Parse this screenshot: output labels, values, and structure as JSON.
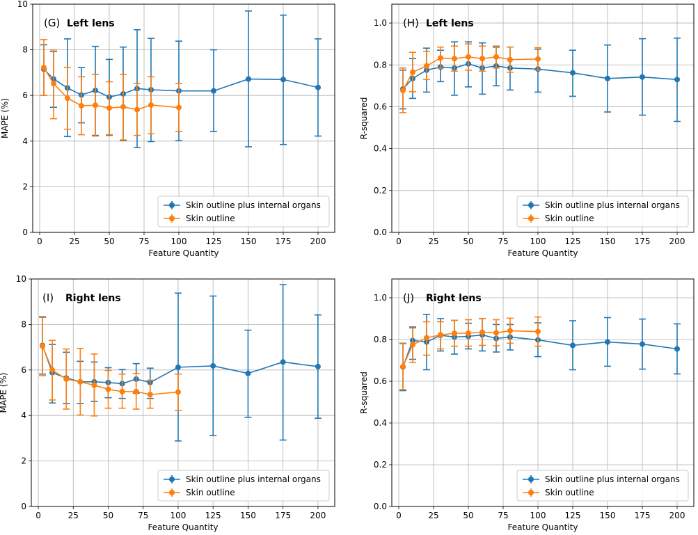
{
  "colors": {
    "blue": "#1f77b4",
    "orange": "#ff7f0e",
    "grid": "#b0b0b0"
  },
  "chart_data": [
    {
      "type": "line",
      "panel": "(G)",
      "title": "Left lens",
      "xlabel": "Feature Quantity",
      "ylabel": "MAPE (%)",
      "xlim": [
        -5,
        212
      ],
      "ylim": [
        0,
        10
      ],
      "xticks": [
        0,
        25,
        50,
        75,
        100,
        125,
        150,
        175,
        200
      ],
      "yticks": [
        0,
        2,
        4,
        6,
        8,
        10
      ],
      "ytick_labels": [
        "0",
        "2",
        "4",
        "6",
        "8",
        "10"
      ],
      "grid": true,
      "legend_position": "lower-right",
      "series": [
        {
          "name": "Skin outline plus internal organs",
          "color": "#1f77b4",
          "x": [
            3,
            10,
            20,
            30,
            40,
            50,
            60,
            70,
            80,
            100,
            125,
            150,
            175,
            200
          ],
          "y": [
            7.15,
            6.72,
            6.33,
            6.02,
            6.22,
            5.93,
            6.07,
            6.3,
            6.25,
            6.2,
            6.2,
            6.72,
            6.7,
            6.35
          ],
          "err_low": [
            6.0,
            5.48,
            4.2,
            4.8,
            4.25,
            4.25,
            4.02,
            3.72,
            3.98,
            4.02,
            4.42,
            3.75,
            3.85,
            4.22
          ],
          "err_high": [
            8.22,
            7.92,
            8.48,
            7.22,
            8.15,
            7.58,
            8.12,
            8.88,
            8.5,
            8.38,
            8.0,
            9.7,
            9.52,
            8.48
          ]
        },
        {
          "name": "Skin outline",
          "color": "#ff7f0e",
          "x": [
            3,
            10,
            20,
            30,
            40,
            50,
            60,
            70,
            80,
            100
          ],
          "y": [
            7.22,
            6.52,
            5.88,
            5.55,
            5.57,
            5.45,
            5.5,
            5.38,
            5.58,
            5.47
          ],
          "err_low": [
            6.0,
            4.98,
            4.52,
            4.28,
            4.22,
            4.28,
            4.05,
            4.25,
            4.32,
            4.42
          ],
          "err_high": [
            8.45,
            8.0,
            7.22,
            6.82,
            6.92,
            6.6,
            6.92,
            6.52,
            6.82,
            6.52
          ]
        }
      ]
    },
    {
      "type": "line",
      "panel": "(H)",
      "title": "Left lens",
      "xlabel": "Feature Quantity",
      "ylabel": "R-squared",
      "xlim": [
        -5,
        212
      ],
      "ylim": [
        0,
        1.09
      ],
      "xticks": [
        0,
        25,
        50,
        75,
        100,
        125,
        150,
        175,
        200
      ],
      "yticks": [
        0,
        0.2,
        0.4,
        0.6,
        0.8,
        1.0
      ],
      "ytick_labels": [
        "0.0",
        "0.2",
        "0.4",
        "0.6",
        "0.8",
        "1.0"
      ],
      "grid": true,
      "legend_position": "lower-right",
      "series": [
        {
          "name": "Skin outline plus internal organs",
          "color": "#1f77b4",
          "x": [
            3,
            10,
            20,
            30,
            40,
            50,
            60,
            70,
            80,
            100,
            125,
            150,
            175,
            200
          ],
          "y": [
            0.685,
            0.735,
            0.775,
            0.79,
            0.785,
            0.805,
            0.785,
            0.795,
            0.785,
            0.78,
            0.762,
            0.735,
            0.742,
            0.73
          ],
          "err_low": [
            0.59,
            0.64,
            0.67,
            0.72,
            0.655,
            0.695,
            0.66,
            0.7,
            0.68,
            0.67,
            0.65,
            0.575,
            0.56,
            0.53
          ],
          "err_high": [
            0.775,
            0.83,
            0.88,
            0.87,
            0.91,
            0.91,
            0.905,
            0.885,
            0.885,
            0.875,
            0.87,
            0.895,
            0.925,
            0.928
          ]
        },
        {
          "name": "Skin outline",
          "color": "#ff7f0e",
          "x": [
            3,
            10,
            20,
            30,
            40,
            50,
            60,
            70,
            80,
            100
          ],
          "y": [
            0.678,
            0.765,
            0.795,
            0.833,
            0.83,
            0.838,
            0.83,
            0.838,
            0.825,
            0.828
          ],
          "err_low": [
            0.572,
            0.672,
            0.73,
            0.785,
            0.77,
            0.775,
            0.77,
            0.785,
            0.765,
            0.775
          ],
          "err_high": [
            0.785,
            0.86,
            0.865,
            0.885,
            0.89,
            0.9,
            0.89,
            0.89,
            0.885,
            0.882
          ]
        }
      ]
    },
    {
      "type": "line",
      "panel": "(I)",
      "title": "Right lens",
      "xlabel": "Feature Quantity",
      "ylabel": "MAPE (%)",
      "xlim": [
        -5,
        212
      ],
      "ylim": [
        0,
        10
      ],
      "xticks": [
        0,
        25,
        50,
        75,
        100,
        125,
        150,
        175,
        200
      ],
      "yticks": [
        0,
        2,
        4,
        6,
        8,
        10
      ],
      "ytick_labels": [
        "0",
        "2",
        "4",
        "6",
        "8",
        "10"
      ],
      "grid": true,
      "legend_position": "lower-right",
      "series": [
        {
          "name": "Skin outline plus internal organs",
          "color": "#1f77b4",
          "x": [
            3,
            10,
            20,
            30,
            40,
            50,
            60,
            70,
            80,
            100,
            125,
            150,
            175,
            200
          ],
          "y": [
            7.08,
            5.88,
            5.65,
            5.48,
            5.48,
            5.45,
            5.4,
            5.6,
            5.45,
            6.12,
            6.18,
            5.85,
            6.35,
            6.15
          ],
          "err_low": [
            5.82,
            4.55,
            4.52,
            4.52,
            4.62,
            4.78,
            4.75,
            4.98,
            4.75,
            2.88,
            3.12,
            3.92,
            2.92,
            3.88
          ],
          "err_high": [
            8.32,
            7.12,
            6.78,
            6.38,
            6.35,
            6.1,
            6.02,
            6.28,
            6.08,
            9.38,
            9.25,
            7.75,
            9.75,
            8.42
          ]
        },
        {
          "name": "Skin outline",
          "color": "#ff7f0e",
          "x": [
            3,
            10,
            20,
            30,
            40,
            50,
            60,
            70,
            80,
            100
          ],
          "y": [
            7.05,
            6.0,
            5.6,
            5.48,
            5.33,
            5.15,
            5.05,
            5.05,
            4.92,
            5.03
          ],
          "err_low": [
            5.75,
            4.68,
            4.28,
            4.02,
            3.98,
            4.32,
            4.32,
            4.28,
            4.32,
            4.22
          ],
          "err_high": [
            8.35,
            7.3,
            6.92,
            6.95,
            6.7,
            5.98,
            5.82,
            5.85,
            5.55,
            5.82
          ]
        }
      ]
    },
    {
      "type": "line",
      "panel": "(J)",
      "title": "Right lens",
      "xlabel": "Feature Quantity",
      "ylabel": "R-squared",
      "xlim": [
        -5,
        212
      ],
      "ylim": [
        0,
        1.09
      ],
      "xticks": [
        0,
        25,
        50,
        75,
        100,
        125,
        150,
        175,
        200
      ],
      "yticks": [
        0,
        0.2,
        0.4,
        0.6,
        0.8,
        1.0
      ],
      "ytick_labels": [
        "0.0",
        "0.2",
        "0.4",
        "0.6",
        "0.8",
        "1.0"
      ],
      "grid": true,
      "legend_position": "lower-right",
      "series": [
        {
          "name": "Skin outline plus internal organs",
          "color": "#1f77b4",
          "x": [
            3,
            10,
            20,
            30,
            40,
            50,
            60,
            70,
            80,
            100,
            125,
            150,
            175,
            200
          ],
          "y": [
            0.668,
            0.795,
            0.788,
            0.82,
            0.812,
            0.815,
            0.822,
            0.805,
            0.812,
            0.798,
            0.772,
            0.788,
            0.778,
            0.755
          ],
          "err_low": [
            0.555,
            0.705,
            0.655,
            0.745,
            0.73,
            0.755,
            0.745,
            0.74,
            0.75,
            0.718,
            0.655,
            0.672,
            0.658,
            0.635
          ],
          "err_high": [
            0.782,
            0.86,
            0.92,
            0.9,
            0.892,
            0.878,
            0.9,
            0.872,
            0.872,
            0.88,
            0.89,
            0.905,
            0.898,
            0.875
          ]
        },
        {
          "name": "Skin outline",
          "color": "#ff7f0e",
          "x": [
            3,
            10,
            20,
            30,
            40,
            50,
            60,
            70,
            80,
            100
          ],
          "y": [
            0.67,
            0.775,
            0.808,
            0.822,
            0.83,
            0.83,
            0.835,
            0.832,
            0.842,
            0.838
          ],
          "err_low": [
            0.56,
            0.69,
            0.725,
            0.755,
            0.768,
            0.768,
            0.772,
            0.77,
            0.782,
            0.768
          ],
          "err_high": [
            0.78,
            0.855,
            0.885,
            0.885,
            0.892,
            0.895,
            0.9,
            0.895,
            0.902,
            0.908
          ]
        }
      ]
    }
  ]
}
